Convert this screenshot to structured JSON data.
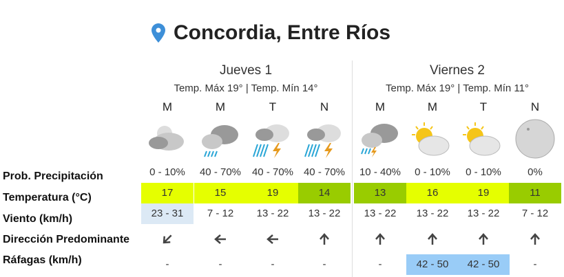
{
  "location": "Concordia, Entre Ríos",
  "days": [
    {
      "name": "Jueves 1",
      "range": "Temp. Máx 19° | Temp. Mín 14°"
    },
    {
      "name": "Viernes 2",
      "range": "Temp. Máx 19° | Temp. Mín 11°"
    }
  ],
  "row_labels": [
    "Prob. Precipitación",
    "Temperatura (°C)",
    "Viento (km/h)",
    "Dirección Predominante",
    "Ráfagas (km/h)"
  ],
  "colors": {
    "temp_high": "#e5ff00",
    "temp_low": "#99cc00",
    "wind_light": "#dce9f5",
    "gust_blue": "#99ccf7"
  },
  "periods": [
    {
      "p": "M",
      "icon": "cloudy-night-icon",
      "prob": "0 - 10%",
      "temp": "17",
      "tc": "#e5ff00",
      "wind": "23 - 31",
      "wc": "#dce9f5",
      "dir": "southwest",
      "gust": "-",
      "gc": ""
    },
    {
      "p": "M",
      "icon": "rain-clouds-icon",
      "prob": "40 - 70%",
      "temp": "15",
      "tc": "#e5ff00",
      "wind": "7 - 12",
      "wc": "",
      "dir": "west",
      "gust": "-",
      "gc": ""
    },
    {
      "p": "T",
      "icon": "thunderstorm-icon",
      "prob": "40 - 70%",
      "temp": "19",
      "tc": "#e5ff00",
      "wind": "13 - 22",
      "wc": "",
      "dir": "west",
      "gust": "-",
      "gc": ""
    },
    {
      "p": "N",
      "icon": "thunderstorm-icon",
      "prob": "40 - 70%",
      "temp": "14",
      "tc": "#99cc00",
      "wind": "13 - 22",
      "wc": "",
      "dir": "north",
      "gust": "-",
      "gc": ""
    },
    {
      "p": "M",
      "icon": "storm-clouds-icon",
      "prob": "10 - 40%",
      "temp": "13",
      "tc": "#99cc00",
      "wind": "13 - 22",
      "wc": "",
      "dir": "north",
      "gust": "-",
      "gc": ""
    },
    {
      "p": "M",
      "icon": "partly-cloudy-icon",
      "prob": "0 - 10%",
      "temp": "16",
      "tc": "#e5ff00",
      "wind": "13 - 22",
      "wc": "",
      "dir": "north",
      "gust": "42 - 50",
      "gc": "#99ccf7"
    },
    {
      "p": "T",
      "icon": "partly-cloudy-icon",
      "prob": "0 - 10%",
      "temp": "19",
      "tc": "#e5ff00",
      "wind": "13 - 22",
      "wc": "",
      "dir": "north",
      "gust": "42 - 50",
      "gc": "#99ccf7"
    },
    {
      "p": "N",
      "icon": "clear-night-moon-icon",
      "prob": "0%",
      "temp": "11",
      "tc": "#99cc00",
      "wind": "7 - 12",
      "wc": "",
      "dir": "north",
      "gust": "-",
      "gc": ""
    }
  ]
}
